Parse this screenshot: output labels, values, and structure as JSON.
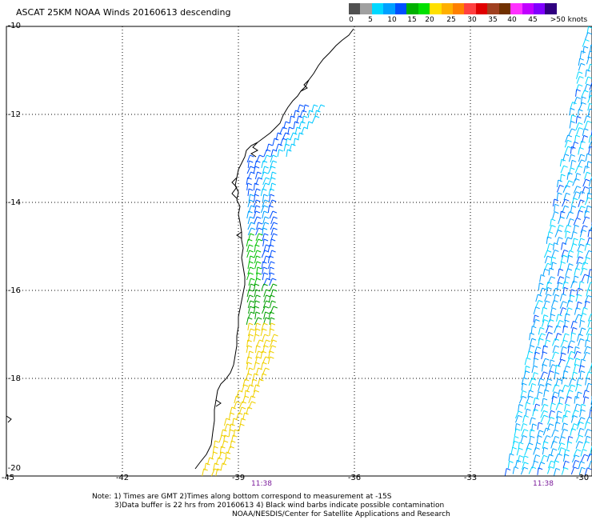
{
  "title": "ASCAT 25KM NOAA Winds 20160613 descending",
  "scale": {
    "colors": [
      "#505050",
      "#a0a0a0",
      "#00d8ff",
      "#00a0ff",
      "#0050ff",
      "#00b000",
      "#00e000",
      "#ffe000",
      "#ffb000",
      "#ff8000",
      "#ff4040",
      "#e00000",
      "#a04020",
      "#703000",
      "#ff30ff",
      "#c000ff",
      "#8000ff",
      "#300080"
    ],
    "labels": [
      "0",
      "5",
      "10",
      "15",
      "20",
      "25",
      "30",
      "35",
      "40",
      "45",
      ">50 knots"
    ]
  },
  "lat_labels": [
    "-10",
    "-12",
    "-14",
    "-16",
    "-18",
    "-20"
  ],
  "lon_labels": [
    "-45",
    "-42",
    "-39",
    "-36",
    "-33",
    "-30"
  ],
  "time_labels": [
    "11:38",
    "11:38"
  ],
  "notes": [
    "Note: 1) Times are GMT 2)Times along bottom correspond to measurement at -15S",
    "3)Data buffer is 22 hrs from 20160613 4) Black wind barbs indicate possible contamination",
    "NOAA/NESDIS/Center for Satellite Applications and Research"
  ],
  "wind_swaths": {
    "coastal_yellow_knots": 20,
    "coastal_green_knots": 15,
    "coastal_blue_knots": 10,
    "offshore_knots": 10
  }
}
